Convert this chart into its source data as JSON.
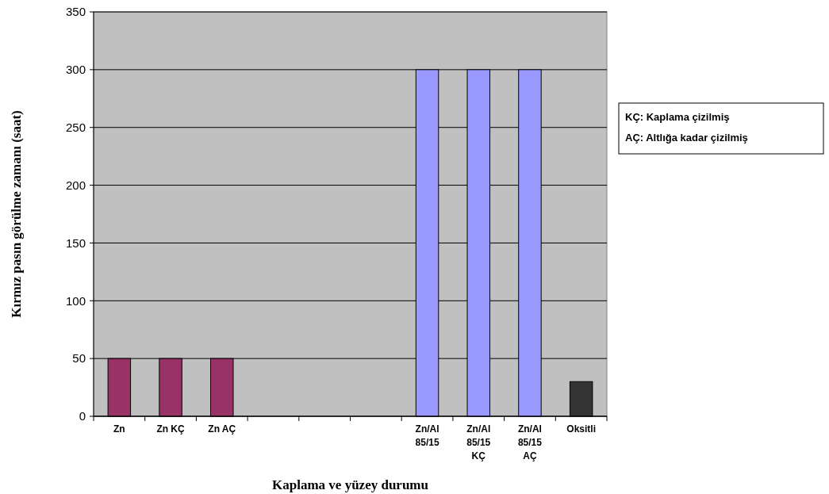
{
  "chart_data": {
    "type": "bar",
    "xlabel": "Kaplama ve yüzey durumu",
    "ylabel": "Kırmız pasın görülme zamanı (saat)",
    "categories": [
      "Zn",
      "Zn KÇ",
      "Zn AÇ",
      null,
      null,
      null,
      "Zn/Al 85/15",
      "Zn/Al 85/15 KÇ",
      "Zn/Al 85/15 AÇ",
      "Oksitli"
    ],
    "values": [
      50,
      50,
      50,
      null,
      null,
      null,
      300,
      300,
      300,
      30
    ],
    "colors": [
      "#993366",
      "#993366",
      "#993366",
      null,
      null,
      null,
      "#9999ff",
      "#9999ff",
      "#9999ff",
      "#333333"
    ],
    "ylim": [
      0,
      350
    ],
    "yticks": [
      0,
      50,
      100,
      150,
      200,
      250,
      300,
      350
    ],
    "grid": "y",
    "annotations": [
      "KÇ: Kaplama çizilmiş",
      "AÇ: Altlığa kadar çizilmiş"
    ]
  }
}
